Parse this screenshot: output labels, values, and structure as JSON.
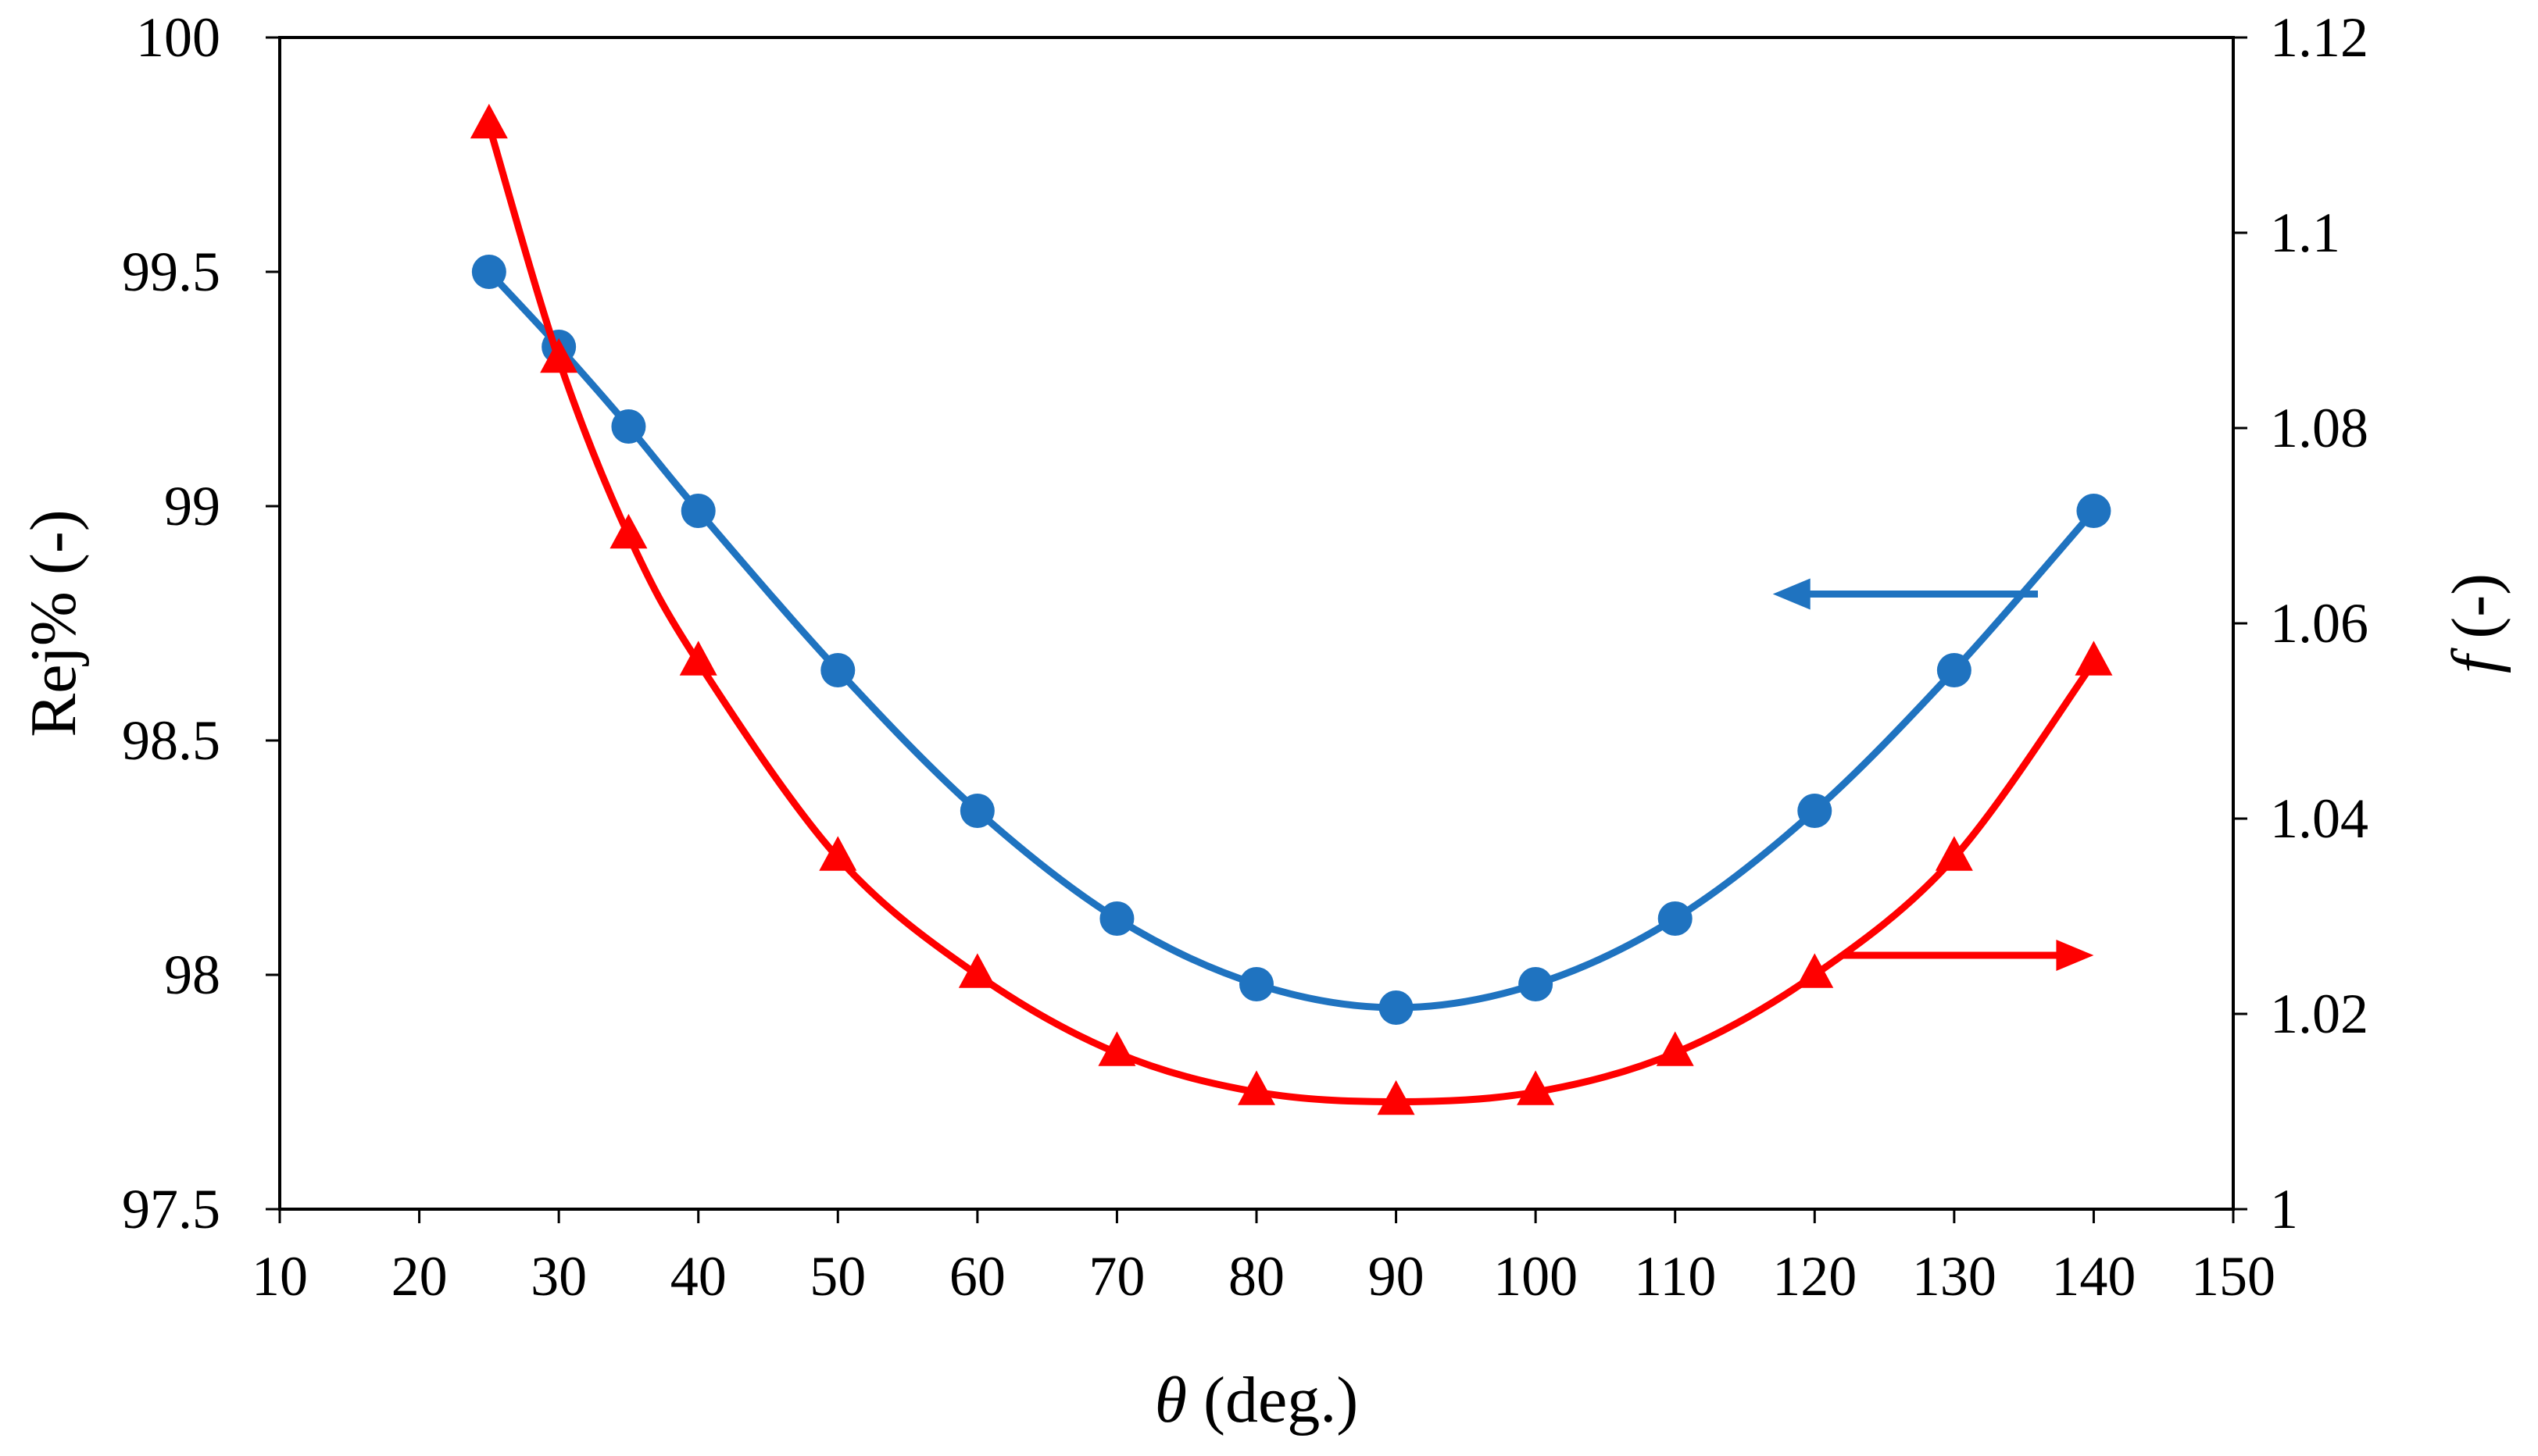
{
  "chart_data": {
    "type": "line",
    "title": "",
    "xlabel": "θ (deg.)",
    "xlabel_symbol": "θ",
    "xlabel_unit": " (deg.)",
    "ylabel_left": "Rej% (-)",
    "ylabel_right": "f (-)",
    "ylabel_right_symbol": "f",
    "ylabel_right_unit": " (-)",
    "xlim": [
      10,
      150
    ],
    "ylim_left": [
      97.5,
      100
    ],
    "ylim_right": [
      1,
      1.12
    ],
    "x_ticks": [
      10,
      20,
      30,
      40,
      50,
      60,
      70,
      80,
      90,
      100,
      110,
      120,
      130,
      140,
      150
    ],
    "y_left_ticks": [
      97.5,
      98,
      98.5,
      99,
      99.5,
      100
    ],
    "y_left_tick_labels": [
      "97.5",
      "98",
      "98.5",
      "99",
      "99.5",
      "100"
    ],
    "y_right_ticks": [
      1,
      1.02,
      1.04,
      1.06,
      1.08,
      1.1,
      1.12
    ],
    "y_right_tick_labels": [
      "1",
      "1.02",
      "1.04",
      "1.06",
      "1.08",
      "1.1",
      "1.12"
    ],
    "grid": false,
    "series": [
      {
        "name": "Rej%",
        "axis": "left",
        "marker": "circle",
        "color": "#1f73c0",
        "x": [
          25,
          30,
          35,
          40,
          50,
          60,
          70,
          80,
          90,
          100,
          110,
          120,
          130,
          140
        ],
        "y": [
          99.5,
          99.34,
          99.17,
          98.99,
          98.65,
          98.35,
          98.12,
          97.98,
          97.93,
          97.98,
          98.12,
          98.35,
          98.65,
          98.99
        ]
      },
      {
        "name": "f",
        "axis": "right",
        "marker": "triangle",
        "color": "#ff0000",
        "x": [
          25,
          30,
          35,
          40,
          50,
          60,
          70,
          80,
          90,
          100,
          110,
          120,
          130,
          140
        ],
        "y": [
          1.111,
          1.087,
          1.069,
          1.056,
          1.036,
          1.024,
          1.016,
          1.012,
          1.011,
          1.012,
          1.016,
          1.024,
          1.036,
          1.056
        ]
      }
    ],
    "annotations": [
      {
        "name": "left-axis-arrow",
        "direction": "left",
        "color": "#1f73c0",
        "x_from": 136,
        "x_to": 117,
        "y_right_value": 1.063
      },
      {
        "name": "right-axis-arrow",
        "direction": "right",
        "color": "#ff0000",
        "x_from": 122,
        "x_to": 140,
        "y_right_value": 1.026
      }
    ]
  }
}
